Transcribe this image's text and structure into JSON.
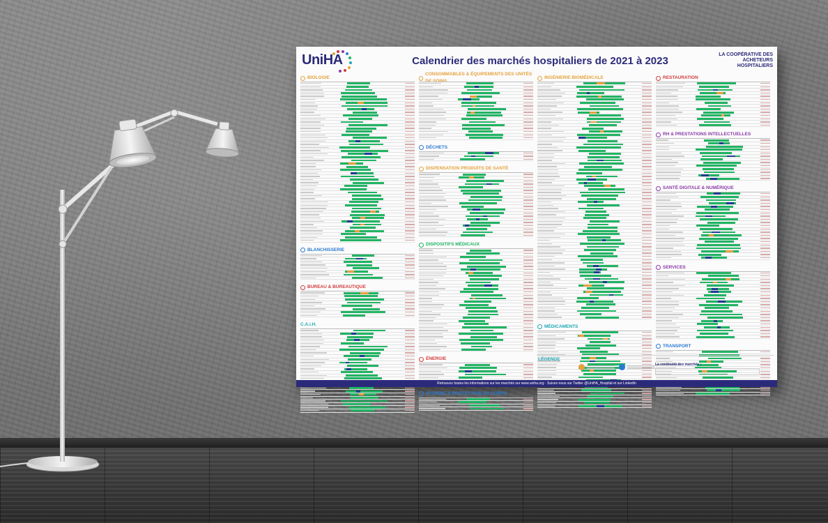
{
  "poster": {
    "logo_text": "UniHA",
    "title": "Calendrier des marchés hospitaliers de 2021 à 2023",
    "cooperative": "LA COOPÉRATIVE DES ACHETEURS HOSPITALIERS",
    "footer": "Retrouvez toutes les informations sur les marchés sur www.uniha.org · Suivez-nous sur Twitter @UniHA_Hospital et sur LinkedIn"
  },
  "sections": {
    "biologie": "BIOLOGIE",
    "blanchisserie": "BLANCHISSERIE",
    "bureau": "BUREAU & BUREAUTIQUE",
    "caih": "C.A.i.H.",
    "consommables": "CONSOMMABLES & ÉQUIPEMENTS DES UNITÉS DE SOINS",
    "dechets": "DÉCHETS",
    "dispensation": "DISPENSATION PRODUITS DE SANTÉ",
    "dispositifs": "DISPOSITIFS MÉDICAUX",
    "energie": "ÉNERGIE",
    "hygiene": "HYGIÈNE & PROTECTION DU CORPS",
    "ingenierie": "INGÉNIERIE BIOMÉDICALE",
    "medicaments": "MÉDICAMENTS",
    "restauration": "RESTAURATION",
    "rh": "RH & PRESTATIONS INTELLECTUELLES",
    "sante": "SANTÉ DIGITALE & NUMÉRIQUE",
    "services": "SERVICES",
    "transport": "TRANSPORT"
  },
  "legend": {
    "title": "LÉGENDE",
    "continuity": "La continuité des marchés :"
  },
  "colors": {
    "navy": "#2b2a7a",
    "green": "#20b463",
    "blue": "#1f3a93",
    "orange": "#e6a23c"
  }
}
